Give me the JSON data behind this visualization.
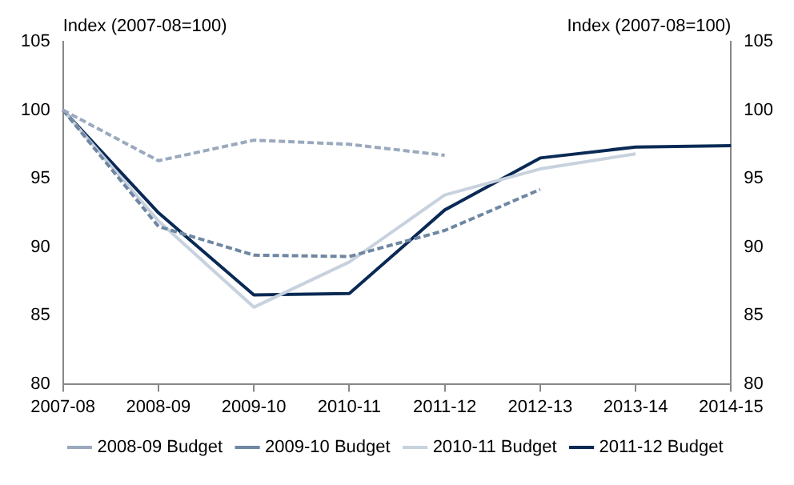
{
  "chart_data": {
    "type": "line",
    "categories": [
      "2007-08",
      "2008-09",
      "2009-10",
      "2010-11",
      "2011-12",
      "2012-13",
      "2013-14",
      "2014-15"
    ],
    "series": [
      {
        "name": "2008-09 Budget",
        "color": "#9aa9bd",
        "line_style": "dashed",
        "values": [
          100,
          96.3,
          97.8,
          97.5,
          96.7,
          null,
          null,
          null
        ]
      },
      {
        "name": "2009-10 Budget",
        "color": "#6f87a3",
        "line_style": "dashed",
        "values": [
          100,
          91.5,
          89.4,
          89.3,
          91.2,
          94.2,
          null,
          null
        ]
      },
      {
        "name": "2010-11 Budget",
        "color": "#c8d2de",
        "line_style": "solid",
        "values": [
          100,
          91.9,
          85.6,
          88.9,
          93.8,
          95.7,
          96.8,
          null
        ]
      },
      {
        "name": "2011-12 Budget",
        "color": "#0a2a55",
        "line_style": "solid",
        "values": [
          100,
          92.5,
          86.5,
          86.6,
          92.7,
          96.5,
          97.3,
          97.4
        ]
      }
    ],
    "ylabel": "Index (2007-08=100)",
    "y2label": "Index (2007-08=100)",
    "ylim": [
      80,
      105
    ],
    "yticks": [
      80,
      85,
      90,
      95,
      100,
      105
    ],
    "y2lim": [
      80,
      105
    ],
    "y2ticks": [
      80,
      85,
      90,
      95,
      100,
      105
    ],
    "grid": false,
    "legend": "bottom",
    "marker": "none"
  }
}
